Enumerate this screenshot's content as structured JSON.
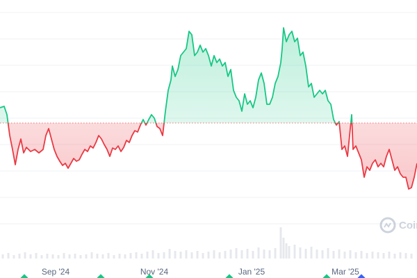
{
  "chart_data": {
    "type": "line",
    "x": [
      0,
      6,
      10,
      14,
      18,
      22,
      26,
      30,
      34,
      38,
      44,
      50,
      56,
      62,
      66,
      70,
      74,
      78,
      82,
      86,
      90,
      94,
      98,
      102,
      106,
      110,
      114,
      118,
      122,
      126,
      130,
      134,
      138,
      142,
      146,
      150,
      154,
      158,
      162,
      166,
      170,
      174,
      178,
      182,
      186,
      190,
      194,
      198,
      202,
      206,
      210,
      214,
      218,
      222,
      226,
      230,
      234,
      238,
      242,
      246,
      248,
      252,
      256,
      260,
      264,
      268,
      272,
      276,
      280,
      284,
      288,
      292,
      296,
      300,
      304,
      308,
      312,
      316,
      320,
      324,
      328,
      332,
      336,
      340,
      344,
      348,
      352,
      356,
      360,
      364,
      368,
      372,
      376,
      380,
      384,
      388,
      392,
      396,
      400,
      404,
      406,
      408,
      412,
      416,
      420,
      424,
      428,
      432,
      436,
      440,
      444,
      448,
      452,
      456,
      460,
      464,
      468,
      472,
      476,
      480,
      484,
      488,
      492,
      496,
      500,
      504,
      506,
      508,
      512,
      516,
      520,
      524,
      528,
      532,
      536,
      540,
      544,
      548,
      552,
      556,
      560,
      564,
      568,
      572,
      576,
      580,
      584,
      588,
      592,
      596,
      600
    ],
    "values": [
      205,
      207,
      195,
      165,
      145,
      123,
      145,
      160,
      140,
      148,
      142,
      145,
      140,
      145,
      165,
      175,
      160,
      145,
      135,
      128,
      122,
      125,
      118,
      125,
      132,
      128,
      130,
      138,
      145,
      142,
      150,
      147,
      155,
      165,
      160,
      152,
      145,
      135,
      147,
      145,
      150,
      142,
      148,
      158,
      155,
      165,
      172,
      170,
      180,
      188,
      180,
      188,
      195,
      190,
      178,
      175,
      165,
      200,
      230,
      245,
      265,
      250,
      260,
      280,
      285,
      290,
      315,
      310,
      280,
      285,
      295,
      285,
      290,
      280,
      265,
      280,
      270,
      275,
      265,
      270,
      250,
      260,
      230,
      220,
      215,
      200,
      225,
      210,
      215,
      205,
      220,
      245,
      255,
      240,
      210,
      210,
      220,
      240,
      250,
      270,
      290,
      320,
      300,
      310,
      315,
      300,
      305,
      280,
      285,
      265,
      235,
      240,
      220,
      225,
      230,
      225,
      230,
      215,
      210,
      188,
      180,
      185,
      145,
      150,
      135,
      175,
      195,
      145,
      150,
      140,
      130,
      105,
      120,
      115,
      125,
      130,
      120,
      125,
      120,
      135,
      145,
      130,
      115,
      120,
      110,
      105,
      105,
      88,
      90,
      105,
      125
    ],
    "baseline": 183,
    "up_color": "#16c784",
    "down_color": "#ea3943",
    "xlim": [
      0,
      600
    ],
    "ylim": [
      0,
      360
    ],
    "yticks": [
      38,
      76,
      114,
      152,
      190,
      228,
      266,
      304,
      342
    ],
    "xticks": [
      {
        "value": 80,
        "label": "Sep '24"
      },
      {
        "value": 222,
        "label": "Nov '24"
      },
      {
        "value": 362,
        "label": "Jan '25"
      },
      {
        "value": 497,
        "label": "Mar '25"
      }
    ],
    "grid": true,
    "volume": {
      "x": [
        4,
        12,
        20,
        28,
        36,
        44,
        52,
        60,
        68,
        76,
        84,
        92,
        100,
        108,
        116,
        124,
        132,
        140,
        148,
        156,
        164,
        172,
        180,
        188,
        196,
        204,
        212,
        220,
        228,
        236,
        244,
        252,
        260,
        268,
        276,
        284,
        292,
        300,
        308,
        316,
        324,
        332,
        340,
        348,
        356,
        364,
        372,
        380,
        388,
        396,
        404,
        408,
        412,
        416,
        424,
        432,
        440,
        448,
        456,
        464,
        472,
        480,
        488,
        496,
        504,
        512,
        520,
        528,
        536,
        544,
        552,
        560,
        568,
        576,
        584,
        592
      ],
      "values": [
        6,
        8,
        5,
        7,
        9,
        6,
        8,
        5,
        7,
        6,
        5,
        8,
        6,
        7,
        5,
        6,
        9,
        7,
        6,
        8,
        5,
        7,
        6,
        8,
        9,
        7,
        10,
        12,
        8,
        9,
        14,
        11,
        10,
        12,
        9,
        11,
        8,
        10,
        12,
        9,
        11,
        13,
        15,
        12,
        14,
        11,
        16,
        13,
        12,
        15,
        45,
        30,
        22,
        18,
        20,
        16,
        14,
        17,
        13,
        12,
        15,
        11,
        13,
        10,
        12,
        9,
        11,
        8,
        10,
        9,
        8,
        10,
        7,
        9,
        8,
        7
      ],
      "color": "#e6e8ed"
    },
    "watermark": "CoinMarketCap"
  }
}
